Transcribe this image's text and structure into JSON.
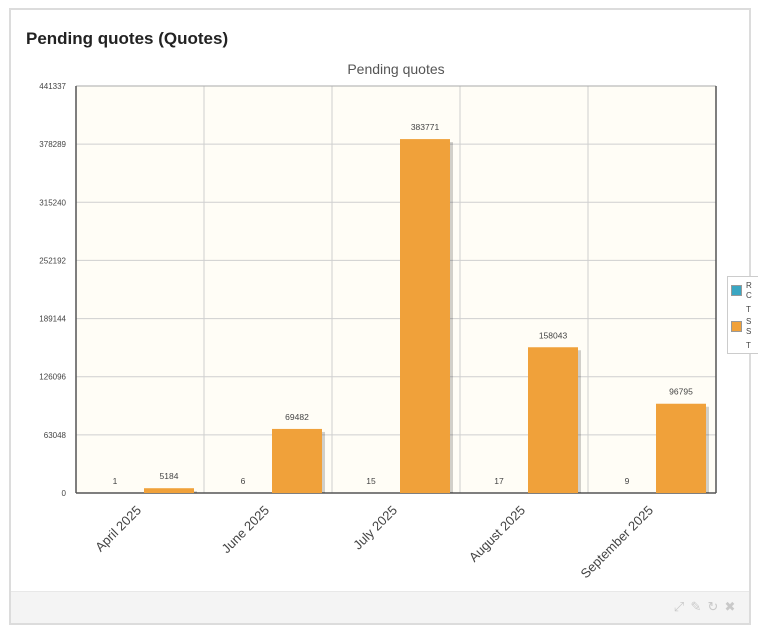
{
  "widget": {
    "title": "Pending quotes (Quotes)"
  },
  "legend": {
    "items": [
      {
        "lines": [
          "R",
          "C",
          "T"
        ],
        "color": "#3aa6c2"
      },
      {
        "lines": [
          "S",
          "S",
          "T"
        ],
        "color": "#f0a13a"
      }
    ]
  },
  "footer": {
    "icons": [
      "expand-icon",
      "edit-icon",
      "refresh-icon",
      "close-icon"
    ]
  },
  "chart_data": {
    "type": "bar",
    "title": "Pending quotes",
    "categories": [
      "April 2025",
      "June 2025",
      "July 2025",
      "August 2025",
      "September 2025"
    ],
    "series": [
      {
        "values": [
          1,
          6,
          15,
          17,
          9
        ],
        "color": "#3aa6c2"
      },
      {
        "values": [
          5184,
          69482,
          383771,
          158043,
          96795
        ],
        "color": "#f0a13a"
      }
    ],
    "yticks": [
      0,
      63048,
      126096,
      189144,
      252192,
      315240,
      378289,
      441337
    ],
    "ylim": [
      0,
      441337
    ],
    "grid": true,
    "legend_position": "right",
    "background": "#fffdf6"
  }
}
